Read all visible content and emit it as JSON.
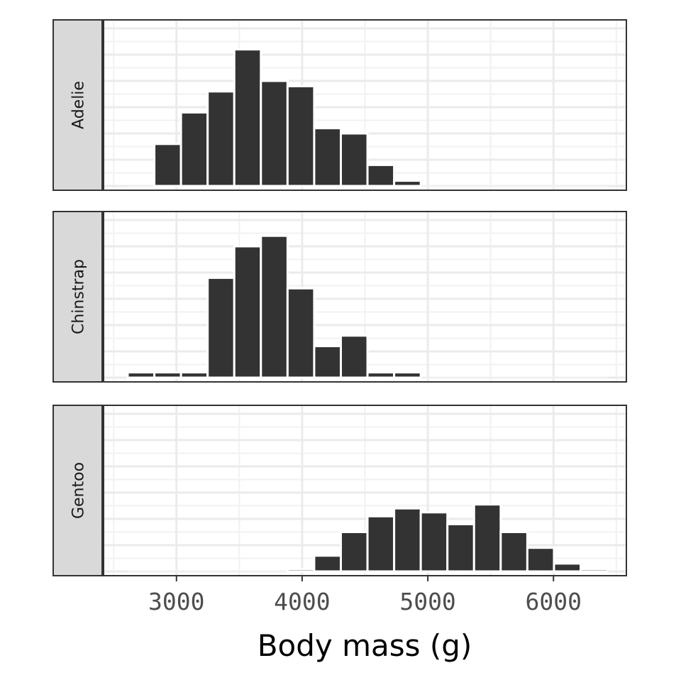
{
  "chart_data": {
    "type": "bar",
    "subtype": "faceted-histogram",
    "xlabel": "Body mass (g)",
    "ylabel": "",
    "title": "",
    "x_ticks": [
      3000,
      4000,
      5000,
      6000
    ],
    "x_tick_labels": [
      "3000",
      "4000",
      "5000",
      "6000"
    ],
    "xlim": [
      2420,
      6580
    ],
    "bin_width": 212,
    "grid": true,
    "legend": "none",
    "colors": {
      "bar_fill": "#333333",
      "bar_outline": "#ffffff",
      "strip_fill": "#d9d9d9",
      "panel_border": "#333333",
      "grid_major": "#ebebeb",
      "grid_minor": "#f2f2f2",
      "tick_text": "#4d4d4d"
    },
    "panels": [
      {
        "name": "Adelie",
        "ylim": [
          0,
          30
        ],
        "bins": [
          {
            "x0": 2824,
            "x1": 3036,
            "count": 8
          },
          {
            "x0": 3036,
            "x1": 3248,
            "count": 14
          },
          {
            "x0": 3248,
            "x1": 3460,
            "count": 18
          },
          {
            "x0": 3460,
            "x1": 3672,
            "count": 26
          },
          {
            "x0": 3672,
            "x1": 3884,
            "count": 20
          },
          {
            "x0": 3884,
            "x1": 4096,
            "count": 19
          },
          {
            "x0": 4096,
            "x1": 4308,
            "count": 11
          },
          {
            "x0": 4308,
            "x1": 4520,
            "count": 10
          },
          {
            "x0": 4520,
            "x1": 4732,
            "count": 4
          },
          {
            "x0": 4732,
            "x1": 4944,
            "count": 1
          }
        ]
      },
      {
        "name": "Chinstrap",
        "ylim": [
          0,
          30
        ],
        "bins": [
          {
            "x0": 2612,
            "x1": 2824,
            "count": 1
          },
          {
            "x0": 2824,
            "x1": 3036,
            "count": 1
          },
          {
            "x0": 3036,
            "x1": 3248,
            "count": 1
          },
          {
            "x0": 3248,
            "x1": 3460,
            "count": 19
          },
          {
            "x0": 3460,
            "x1": 3672,
            "count": 25
          },
          {
            "x0": 3672,
            "x1": 3884,
            "count": 27
          },
          {
            "x0": 3884,
            "x1": 4096,
            "count": 17
          },
          {
            "x0": 4096,
            "x1": 4308,
            "count": 6
          },
          {
            "x0": 4308,
            "x1": 4520,
            "count": 8
          },
          {
            "x0": 4520,
            "x1": 4732,
            "count": 1
          },
          {
            "x0": 4732,
            "x1": 4944,
            "count": 1
          }
        ]
      },
      {
        "name": "Gentoo",
        "ylim": [
          0,
          20
        ],
        "bins": [
          {
            "x0": 3884,
            "x1": 4096,
            "count": 0.3
          },
          {
            "x0": 4096,
            "x1": 4308,
            "count": 2
          },
          {
            "x0": 4308,
            "x1": 4520,
            "count": 5
          },
          {
            "x0": 4520,
            "x1": 4732,
            "count": 7
          },
          {
            "x0": 4732,
            "x1": 4944,
            "count": 8
          },
          {
            "x0": 4944,
            "x1": 5156,
            "count": 7.5
          },
          {
            "x0": 5156,
            "x1": 5368,
            "count": 6
          },
          {
            "x0": 5368,
            "x1": 5580,
            "count": 8.5
          },
          {
            "x0": 5580,
            "x1": 5792,
            "count": 5
          },
          {
            "x0": 5792,
            "x1": 6004,
            "count": 3
          },
          {
            "x0": 6004,
            "x1": 6216,
            "count": 1
          },
          {
            "x0": 6216,
            "x1": 6428,
            "count": 0.3
          }
        ]
      }
    ]
  }
}
